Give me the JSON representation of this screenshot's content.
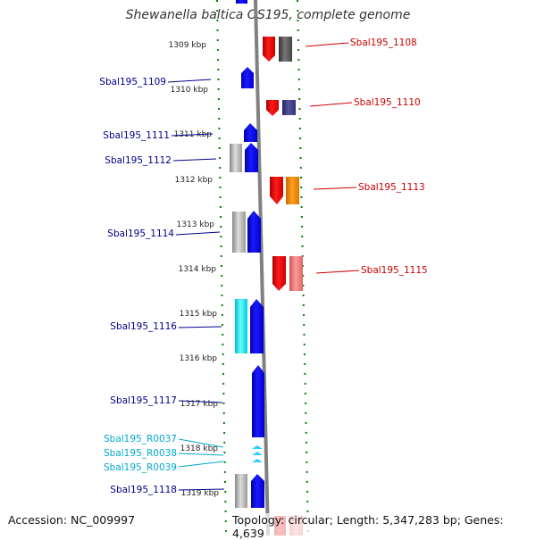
{
  "title": "Shewanella baltica OS195, complete genome",
  "accession": "Accession: NC_009997",
  "topology": "Topology: circular; Length: 5,347,283 bp; Genes: 4,639",
  "ruler": {
    "ticks": [
      "1309 kbp",
      "1310 kbp",
      "1311 kbp",
      "1312 kbp",
      "1313 kbp",
      "1314 kbp",
      "1315 kbp",
      "1316 kbp",
      "1317 kbp",
      "1318 kbp",
      "1319 kbp"
    ]
  },
  "genes_left": [
    {
      "label": "Sbal195_1109",
      "color": "#00008b"
    },
    {
      "label": "Sbal195_1111",
      "color": "#00008b"
    },
    {
      "label": "Sbal195_1112",
      "color": "#00008b"
    },
    {
      "label": "Sbal195_1114",
      "color": "#00008b"
    },
    {
      "label": "Sbal195_1116",
      "color": "#00008b"
    },
    {
      "label": "Sbal195_1117",
      "color": "#00008b"
    },
    {
      "label": "Sbal195_R0037",
      "color": "#00aacc"
    },
    {
      "label": "Sbal195_R0038",
      "color": "#00aacc"
    },
    {
      "label": "Sbal195_R0039",
      "color": "#00aacc"
    },
    {
      "label": "Sbal195_1118",
      "color": "#00008b"
    }
  ],
  "genes_right": [
    {
      "label": "Sbal195_1108",
      "color": "#cc0000"
    },
    {
      "label": "Sbal195_1110",
      "color": "#cc0000"
    },
    {
      "label": "Sbal195_1113",
      "color": "#cc0000"
    },
    {
      "label": "Sbal195_1115",
      "color": "#cc0000"
    }
  ],
  "colors": {
    "forward_cds": "#0000ff",
    "reverse_cds": "#ff0000",
    "rrna": "#33ccff",
    "backbone": "#808080",
    "tick_mark": "#008000"
  }
}
